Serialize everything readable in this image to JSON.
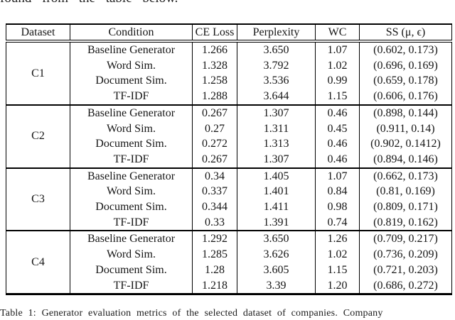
{
  "page": {
    "top_clipped_text": "found from the table below.",
    "caption": "Table 1: Generator evaluation metrics of the selected dataset of companies. Company"
  },
  "table": {
    "headers": [
      "Dataset",
      "Condition",
      "CE Loss",
      "Perplexity",
      "WC",
      "SS (μ, ϵ)"
    ],
    "groups": [
      {
        "dataset": "C1",
        "rows": [
          {
            "condition": "Baseline Generator",
            "ce_loss": "1.266",
            "perplexity": "3.650",
            "wc": "1.07",
            "ss": "(0.602, 0.173)",
            "ss_bold": false
          },
          {
            "condition": "Word Sim.",
            "ce_loss": "1.328",
            "perplexity": "3.792",
            "wc": "1.02",
            "ss": "(0.696, 0.169)",
            "ss_bold": true
          },
          {
            "condition": "Document Sim.",
            "ce_loss": "1.258",
            "perplexity": "3.536",
            "wc": "0.99",
            "ss": "(0.659, 0.178)",
            "ss_bold": false
          },
          {
            "condition": "TF-IDF",
            "ce_loss": "1.288",
            "perplexity": "3.644",
            "wc": "1.15",
            "ss": "(0.606, 0.176)",
            "ss_bold": false
          }
        ]
      },
      {
        "dataset": "C2",
        "rows": [
          {
            "condition": "Baseline Generator",
            "ce_loss": "0.267",
            "perplexity": "1.307",
            "wc": "0.46",
            "ss": "(0.898, 0.144)",
            "ss_bold": false
          },
          {
            "condition": "Word Sim.",
            "ce_loss": "0.27",
            "perplexity": "1.311",
            "wc": "0.45",
            "ss": "(0.911, 0.14)",
            "ss_bold": true
          },
          {
            "condition": "Document Sim.",
            "ce_loss": "0.272",
            "perplexity": "1.313",
            "wc": "0.46",
            "ss": "(0.902, 0.1412)",
            "ss_bold": false
          },
          {
            "condition": "TF-IDF",
            "ce_loss": "0.267",
            "perplexity": "1.307",
            "wc": "0.46",
            "ss": "(0.894, 0.146)",
            "ss_bold": false
          }
        ]
      },
      {
        "dataset": "C3",
        "rows": [
          {
            "condition": "Baseline Generator",
            "ce_loss": "0.34",
            "perplexity": "1.405",
            "wc": "1.07",
            "ss": "(0.662, 0.173)",
            "ss_bold": false
          },
          {
            "condition": "Word Sim.",
            "ce_loss": "0.337",
            "perplexity": "1.401",
            "wc": "0.84",
            "ss": "(0.81, 0.169)",
            "ss_bold": false
          },
          {
            "condition": "Document Sim.",
            "ce_loss": "0.344",
            "perplexity": "1.411",
            "wc": "0.98",
            "ss": "(0.809, 0.171)",
            "ss_bold": false
          },
          {
            "condition": "TF-IDF",
            "ce_loss": "0.33",
            "perplexity": "1.391",
            "wc": "0.74",
            "ss": "(0.819, 0.162)",
            "ss_bold": true
          }
        ]
      },
      {
        "dataset": "C4",
        "rows": [
          {
            "condition": "Baseline Generator",
            "ce_loss": "1.292",
            "perplexity": "3.650",
            "wc": "1.26",
            "ss": "(0.709, 0.217)",
            "ss_bold": false
          },
          {
            "condition": "Word Sim.",
            "ce_loss": "1.285",
            "perplexity": "3.626",
            "wc": "1.02",
            "ss": "(0.736, 0.209)",
            "ss_bold": true
          },
          {
            "condition": "Document Sim.",
            "ce_loss": "1.28",
            "perplexity": "3.605",
            "wc": "1.15",
            "ss": "(0.721, 0.203)",
            "ss_bold": false
          },
          {
            "condition": "TF-IDF",
            "ce_loss": "1.218",
            "perplexity": "3.39",
            "wc": "1.20",
            "ss": "(0.686, 0.272)",
            "ss_bold": false
          }
        ]
      }
    ]
  }
}
